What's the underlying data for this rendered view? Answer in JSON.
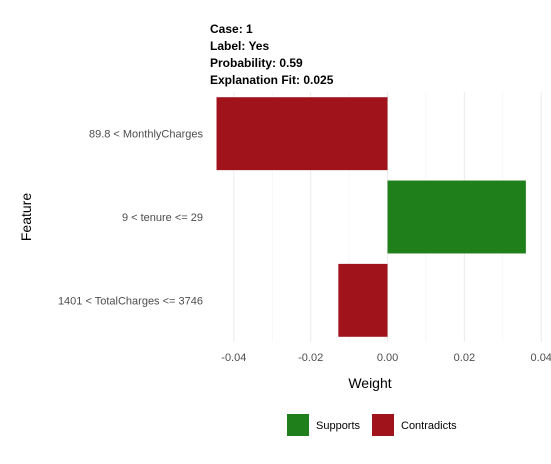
{
  "header": {
    "case": "Case: 1",
    "label": "Label: Yes",
    "probability": "Probability: 0.59",
    "fit": "Explanation Fit: 0.025"
  },
  "chart_data": {
    "type": "bar",
    "orientation": "horizontal",
    "title": "",
    "xlabel": "Weight",
    "ylabel": "Feature",
    "xlim": [
      -0.0462,
      0.0402
    ],
    "xticks": [
      -0.04,
      -0.02,
      0.0,
      0.02,
      0.04
    ],
    "xtick_labels": [
      "-0.04",
      "-0.02",
      "0.00",
      "0.02",
      "0.04"
    ],
    "grid": true,
    "legend_position": "bottom",
    "categories": [
      "89.8 < MonthlyCharges",
      "9 < tenure <= 29",
      "1401 < TotalCharges <= 3746"
    ],
    "values": [
      -0.0445,
      0.036,
      -0.0128
    ],
    "support": [
      "Contradicts",
      "Supports",
      "Contradicts"
    ],
    "legend": [
      {
        "label": "Supports",
        "color": "#1f7f1a"
      },
      {
        "label": "Contradicts",
        "color": "#a1131b"
      }
    ]
  }
}
